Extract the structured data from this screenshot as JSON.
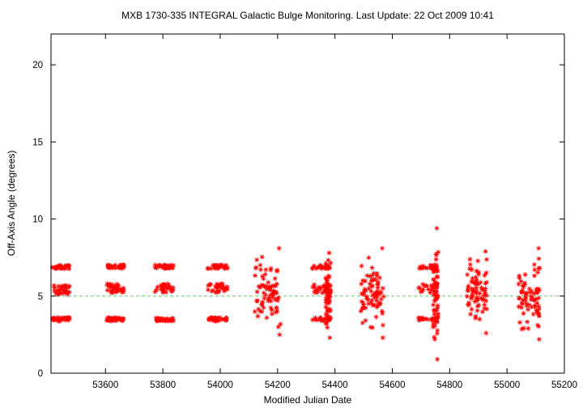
{
  "chart_data": {
    "type": "scatter",
    "title": "MXB 1730-335   INTEGRAL Galactic Bulge Monitoring.  Last Update: 22 Oct 2009 10:41",
    "xlabel": "Modified Julian Date",
    "ylabel": "Off-Axis Angle (degrees)",
    "xlim": [
      53410,
      55200
    ],
    "ylim": [
      0,
      22
    ],
    "xticks": [
      53600,
      53800,
      54000,
      54200,
      54400,
      54600,
      54800,
      55000,
      55200
    ],
    "yticks": [
      0,
      5,
      10,
      15,
      20
    ],
    "grid": false,
    "reference_line": {
      "y": 5,
      "color": "#66cc66",
      "style": "dashed"
    },
    "marker": {
      "symbol": "asterisk",
      "color": "#ff0000"
    },
    "observation_windows": [
      {
        "mjd_start": 53415,
        "mjd_end": 53475,
        "style": "bands",
        "levels": [
          3.5,
          5.4,
          6.9
        ]
      },
      {
        "mjd_start": 53605,
        "mjd_end": 53665,
        "style": "bands",
        "levels": [
          3.5,
          5.5,
          6.9
        ]
      },
      {
        "mjd_start": 53770,
        "mjd_end": 53840,
        "style": "bands",
        "levels": [
          3.5,
          5.5,
          6.9
        ]
      },
      {
        "mjd_start": 53955,
        "mjd_end": 54025,
        "style": "bands",
        "levels": [
          3.5,
          5.5,
          6.9
        ]
      },
      {
        "mjd_start": 54120,
        "mjd_end": 54210,
        "style": "scatter",
        "y_range": [
          2.5,
          8.1
        ]
      },
      {
        "mjd_start": 54320,
        "mjd_end": 54385,
        "style": "mixed",
        "levels": [
          3.5,
          5.5,
          6.9
        ],
        "y_range": [
          2.3,
          7.8
        ]
      },
      {
        "mjd_start": 54490,
        "mjd_end": 54570,
        "style": "scatter",
        "y_range": [
          2.3,
          8.1
        ]
      },
      {
        "mjd_start": 54690,
        "mjd_end": 54760,
        "style": "mixed",
        "levels": [
          3.5,
          5.5,
          6.9
        ],
        "y_range": [
          0.9,
          9.4
        ]
      },
      {
        "mjd_start": 54860,
        "mjd_end": 54930,
        "style": "scatter",
        "y_range": [
          2.6,
          7.9
        ]
      },
      {
        "mjd_start": 55040,
        "mjd_end": 55115,
        "style": "scatter",
        "y_range": [
          2.2,
          8.1
        ]
      }
    ]
  }
}
